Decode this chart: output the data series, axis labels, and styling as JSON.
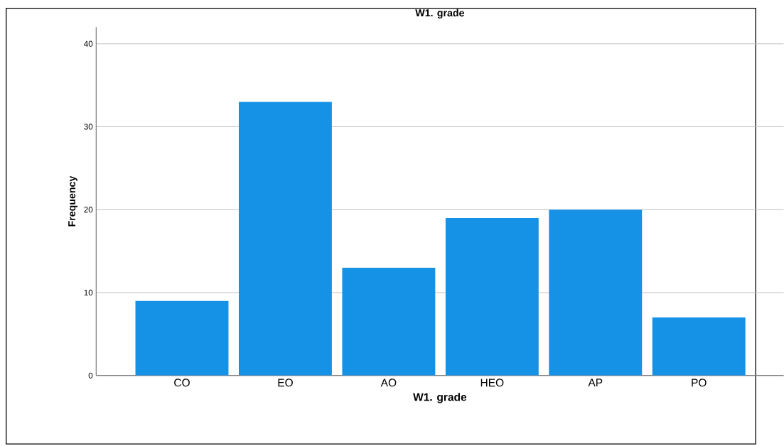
{
  "chart_data": {
    "type": "bar",
    "title": "W1. grade",
    "xlabel": "W1. grade",
    "ylabel": "Frequency",
    "categories": [
      "CO",
      "EO",
      "AO",
      "HEO",
      "AP",
      "PO"
    ],
    "values": [
      9,
      33,
      13,
      19,
      20,
      7
    ],
    "color": "#1591e6",
    "ylim": [
      0,
      42
    ],
    "yticks": [
      0,
      10,
      20,
      30,
      40
    ],
    "grid": "y"
  }
}
